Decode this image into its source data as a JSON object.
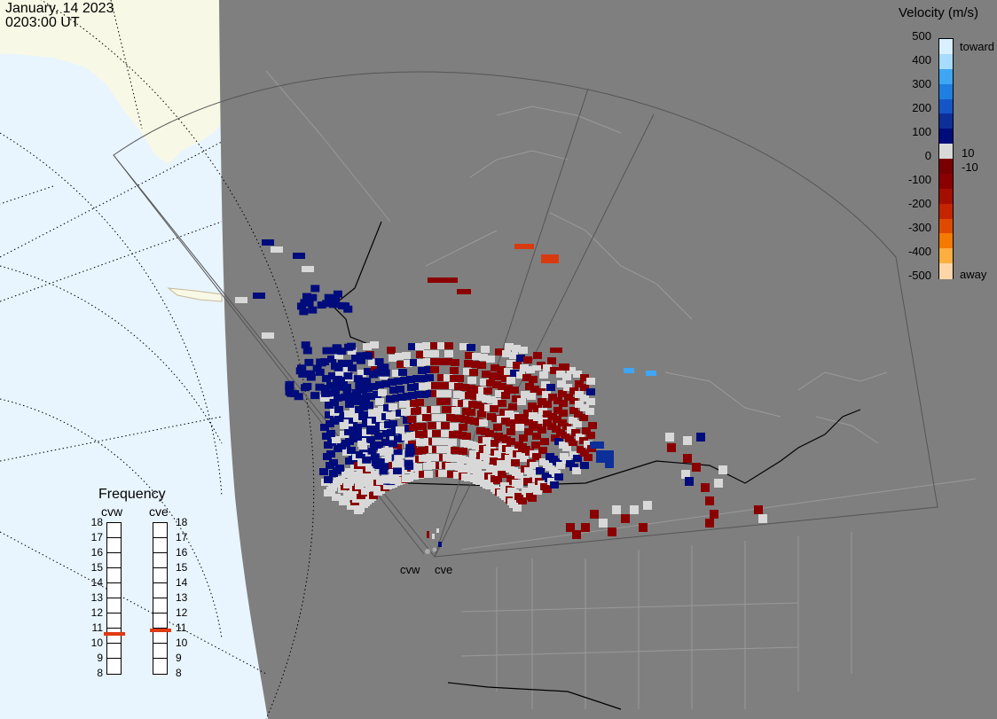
{
  "header": {
    "date": "January, 14 2023",
    "time": "0203:00 UT"
  },
  "velocity_scale": {
    "title": "Velocity (m/s)",
    "ticks": [
      "500",
      "400",
      "300",
      "200",
      "100",
      "0",
      "-100",
      "-200",
      "-300",
      "-400",
      "-500"
    ],
    "label_toward": "toward",
    "label_away": "away",
    "label_pos10": "10",
    "label_neg10": "-10",
    "colors": [
      "#d8f0ff",
      "#a6dcff",
      "#3ea6f4",
      "#1f7fe0",
      "#1555c8",
      "#0d2f9a",
      "#000c7c",
      "#d8d8d8",
      "#7a0000",
      "#8a0000",
      "#a40e00",
      "#c42400",
      "#e04a00",
      "#f47a00",
      "#ffae40",
      "#ffd6a8"
    ]
  },
  "radars": [
    {
      "code": "cvw"
    },
    {
      "code": "cve"
    }
  ],
  "frequency": {
    "title": "Frequency",
    "ticks": [
      "18",
      "17",
      "16",
      "15",
      "14",
      "13",
      "12",
      "11",
      "10",
      "9",
      "8"
    ],
    "cvw_value": 10.6,
    "cve_value": 10.8,
    "marker_color": "#e03a10"
  },
  "map": {
    "ocean_color": "#e8f5ff",
    "land_color": "#f8f8e6",
    "night_color": "#7f7f7f",
    "far_color": "#ff1111",
    "near_color": "#dd0000"
  }
}
